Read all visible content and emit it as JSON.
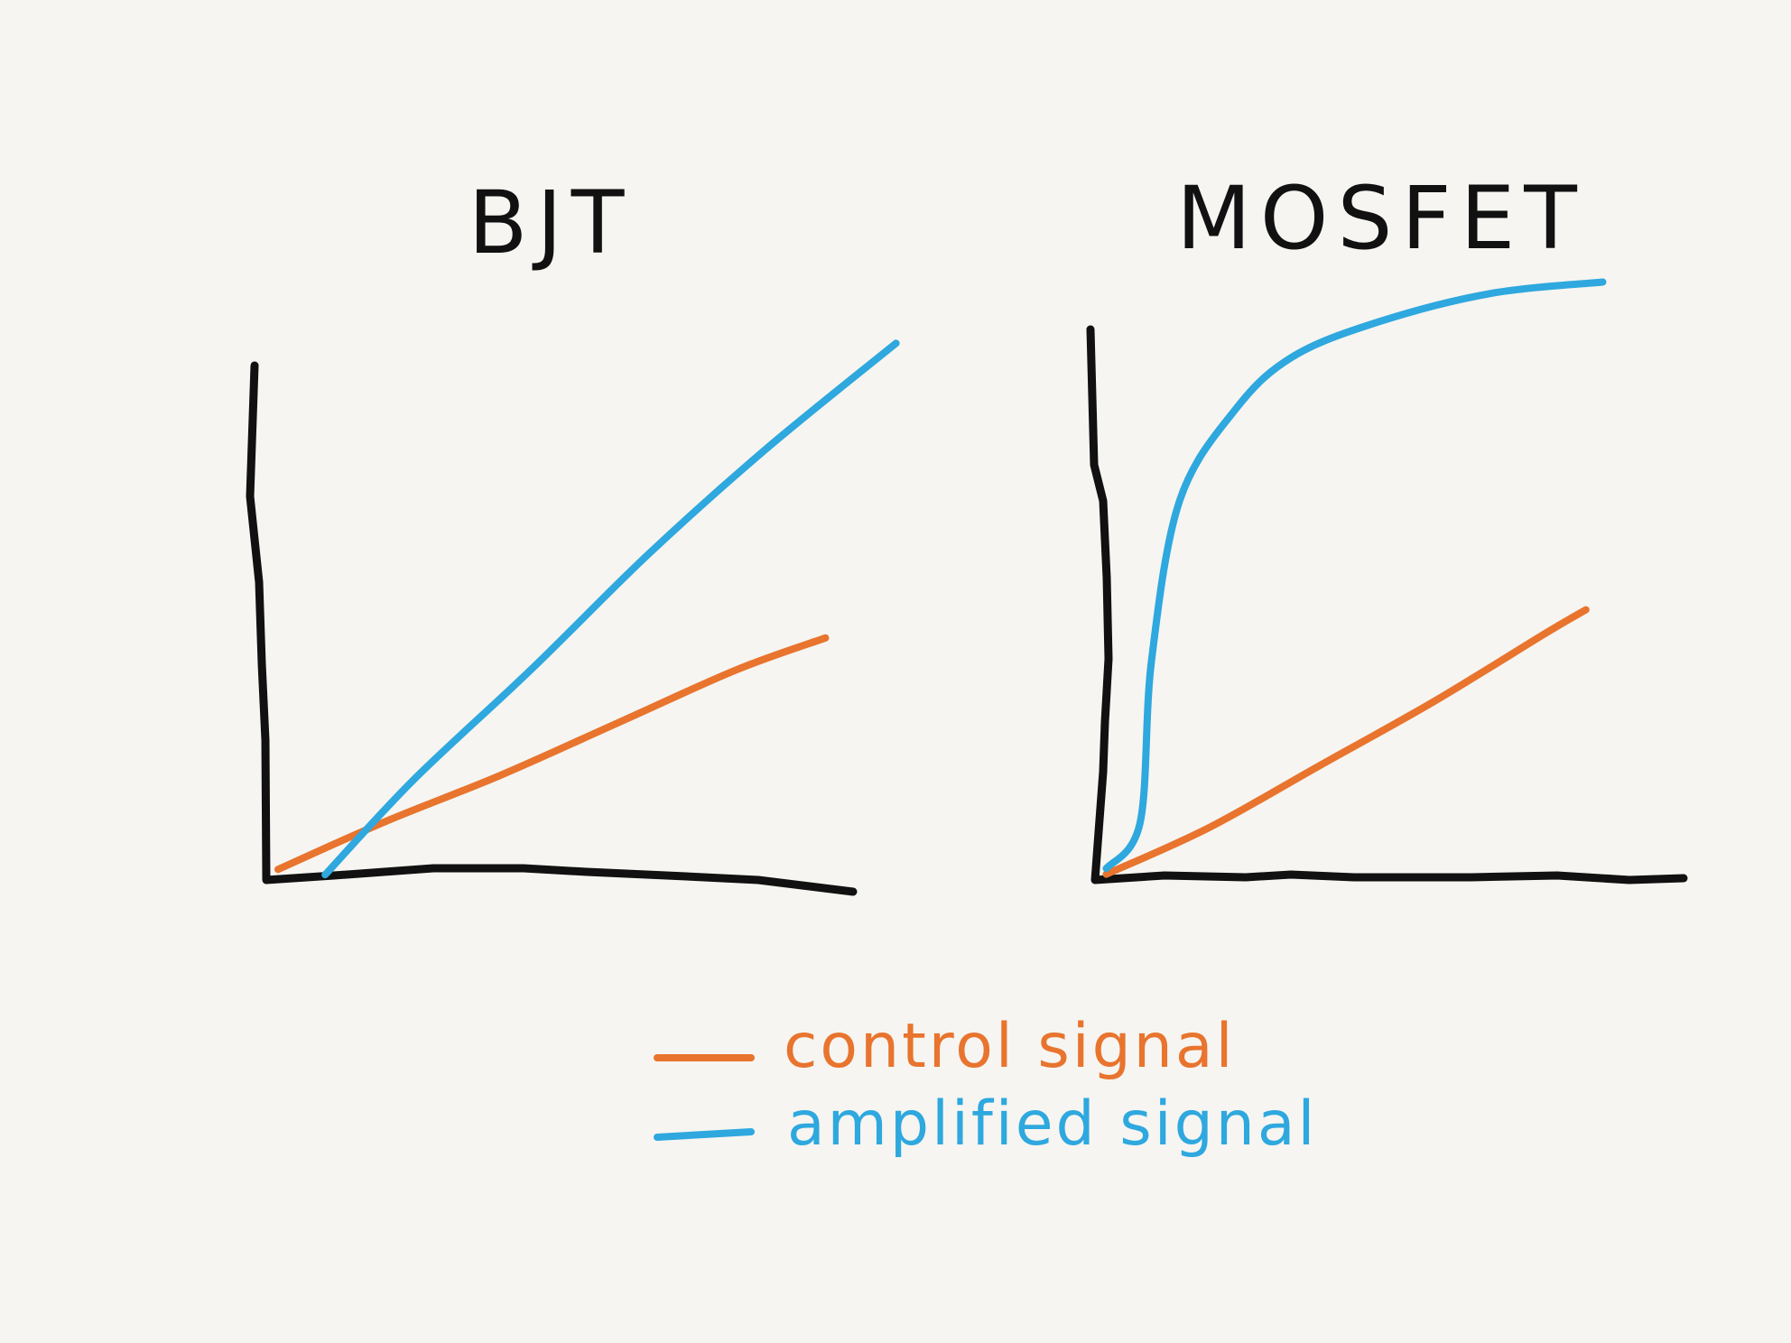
{
  "colors": {
    "background": "#f6f5f1",
    "axis": "#111111",
    "control": "#e8742e",
    "amplified": "#2ea8de"
  },
  "legend": {
    "placement": "bottom-center",
    "items": [
      {
        "label": "control signal",
        "color": "#e8742e"
      },
      {
        "label": "amplified signal",
        "color": "#2ea8de"
      }
    ]
  },
  "chart_data": [
    {
      "type": "line",
      "title": "BJT",
      "xlabel": "",
      "ylabel": "",
      "grid": false,
      "xlim": [
        0,
        100
      ],
      "ylim": [
        0,
        100
      ],
      "series": [
        {
          "name": "control signal",
          "color": "#e8742e",
          "x": [
            2,
            20,
            40,
            60,
            80,
            95
          ],
          "y": [
            2,
            11,
            20,
            30,
            40,
            46
          ]
        },
        {
          "name": "amplified signal",
          "color": "#2ea8de",
          "x": [
            10,
            25,
            45,
            65,
            85,
            107
          ],
          "y": [
            1,
            19,
            40,
            62,
            82,
            102
          ]
        }
      ]
    },
    {
      "type": "line",
      "title": "MOSFET",
      "xlabel": "",
      "ylabel": "",
      "grid": false,
      "xlim": [
        0,
        100
      ],
      "ylim": [
        0,
        100
      ],
      "series": [
        {
          "name": "control signal",
          "color": "#e8742e",
          "x": [
            2,
            20,
            40,
            60,
            80,
            87
          ],
          "y": [
            1,
            9,
            20,
            31,
            43,
            47
          ]
        },
        {
          "name": "amplified signal",
          "color": "#2ea8de",
          "x": [
            2,
            8,
            10,
            15,
            25,
            35,
            50,
            70,
            90
          ],
          "y": [
            2,
            10,
            38,
            66,
            82,
            91,
            97,
            102,
            104
          ]
        }
      ]
    }
  ]
}
